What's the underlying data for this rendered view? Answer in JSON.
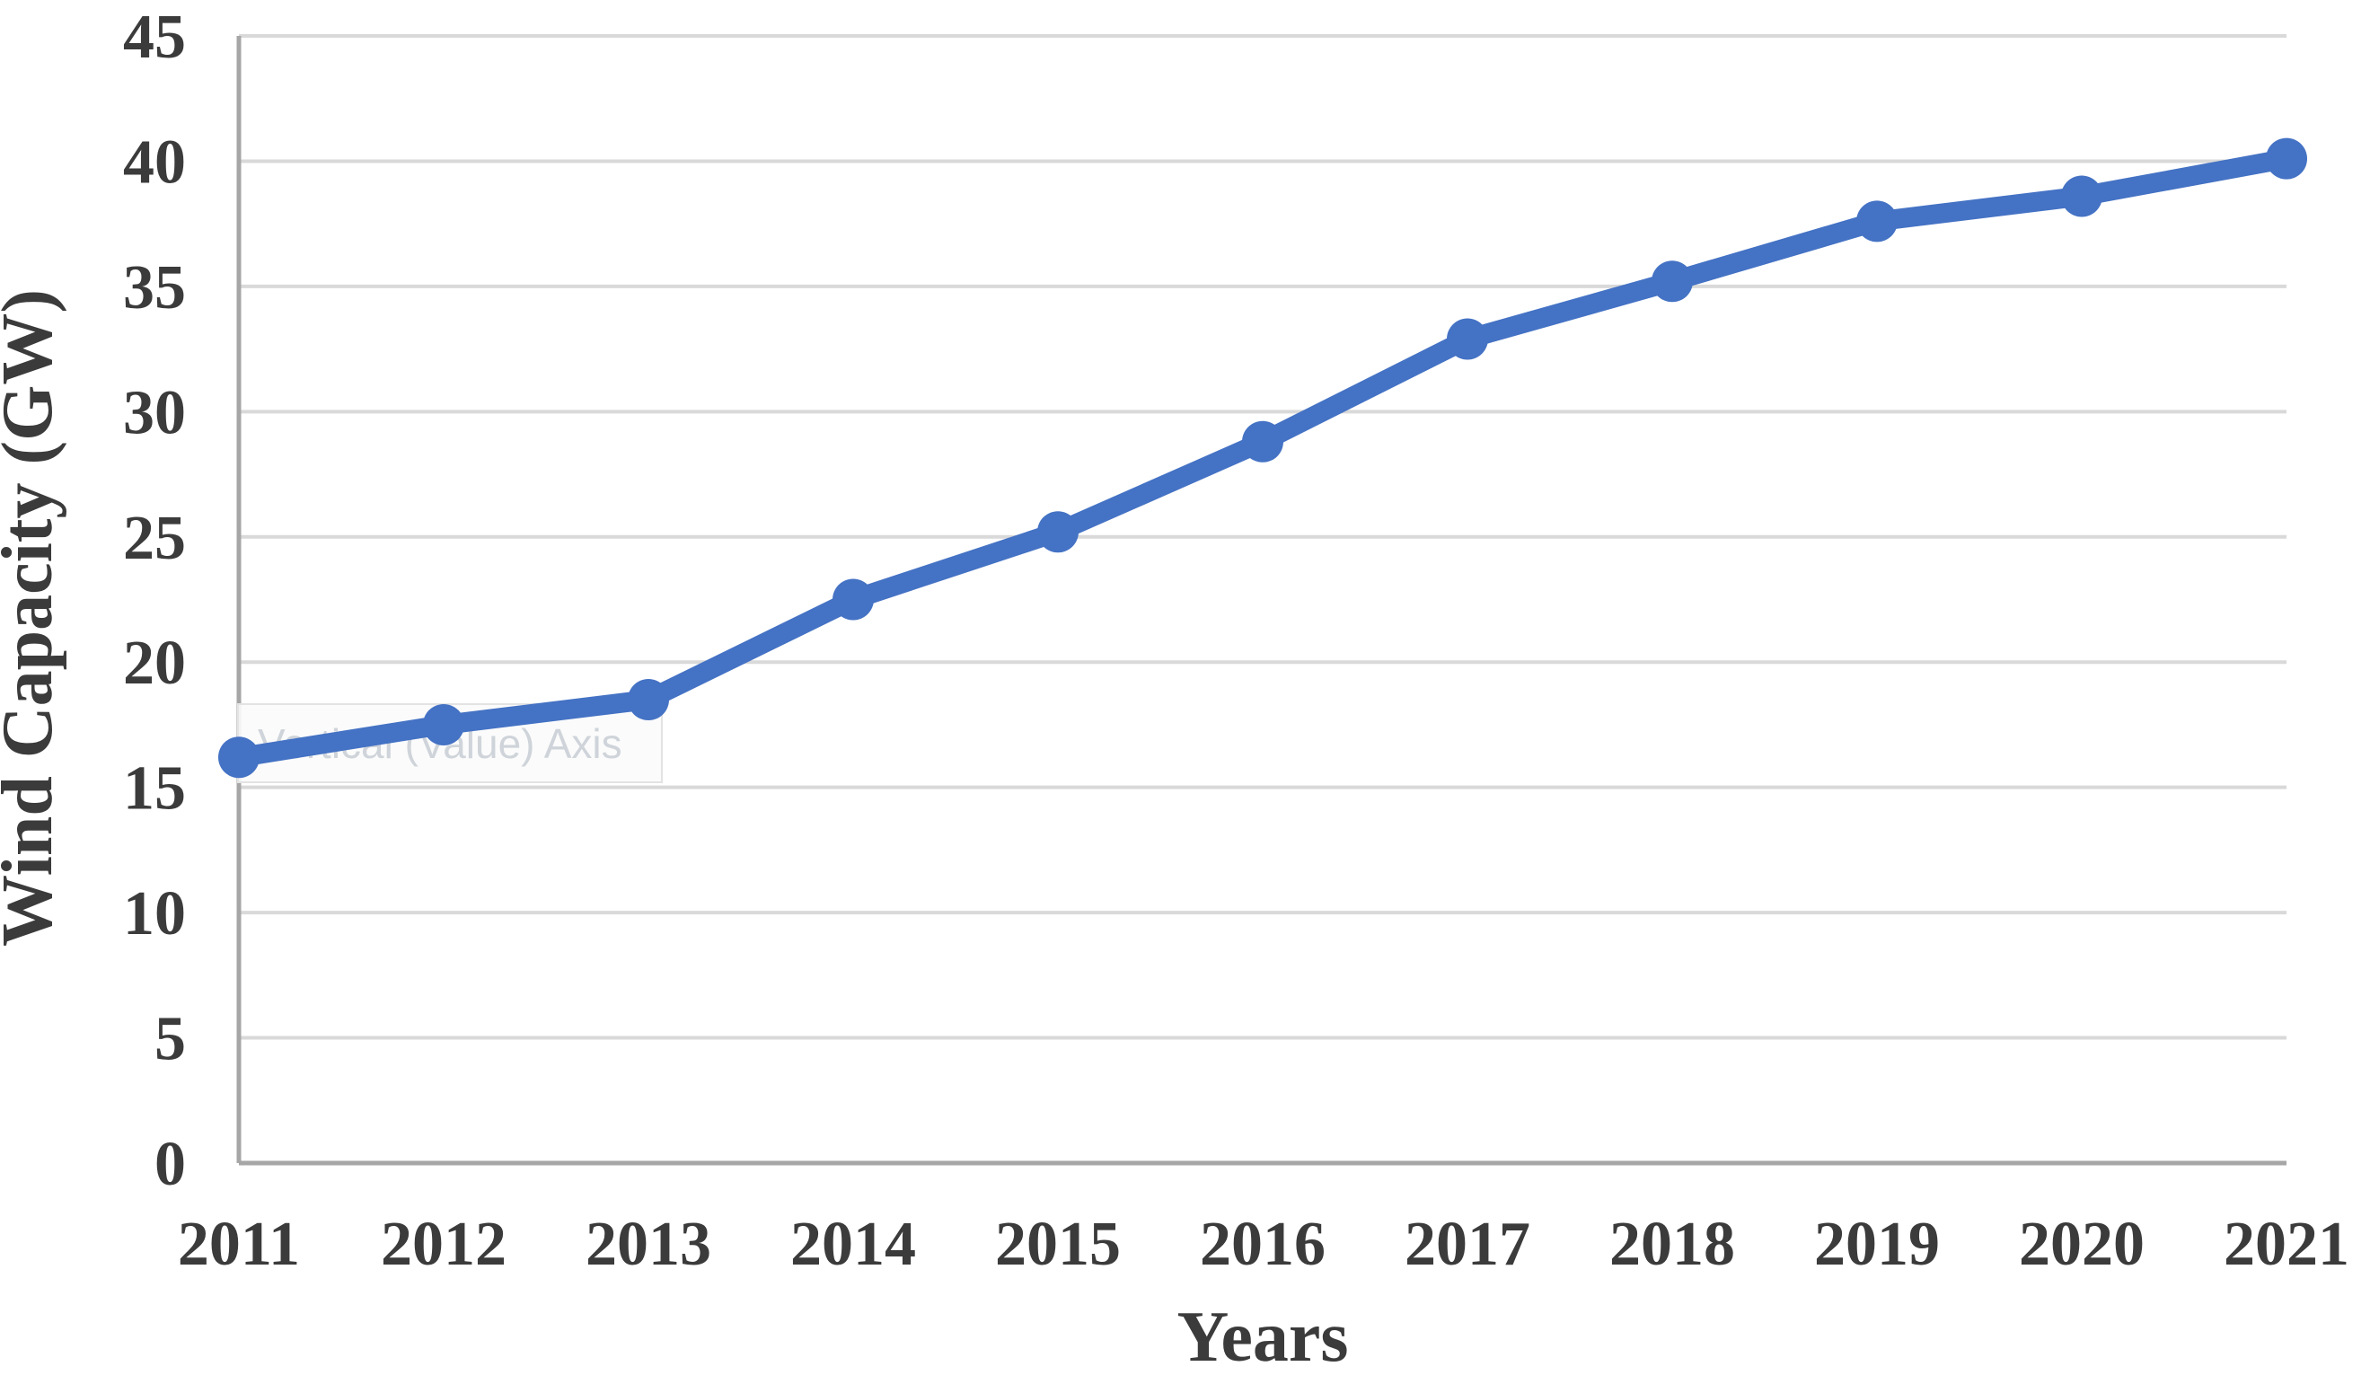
{
  "chart": {
    "y_axis_title": "Wind Capacity (GW)",
    "x_axis_title": "Years",
    "tooltip_text": "Vertical (Value) Axis",
    "colors": {
      "line": "#4472C4",
      "marker": "#4472C4",
      "gridline": "#D9D9D9",
      "axis_line": "#A6A6A6",
      "label_text": "#3B3B3B",
      "tooltip_bg": "#FBFBFB",
      "tooltip_border": "#E3E3E3",
      "tooltip_text_color": "#CFD4DA",
      "background": "#FFFFFF"
    }
  },
  "chart_data": {
    "type": "line",
    "title": "",
    "xlabel": "Years",
    "ylabel": "Wind Capacity (GW)",
    "categories": [
      "2011",
      "2012",
      "2013",
      "2014",
      "2015",
      "2016",
      "2017",
      "2018",
      "2019",
      "2020",
      "2021"
    ],
    "series": [
      {
        "name": "Wind Capacity (GW)",
        "values": [
          16.2,
          17.5,
          18.5,
          22.5,
          25.2,
          28.8,
          32.9,
          35.2,
          37.6,
          38.6,
          40.1
        ]
      }
    ],
    "ylim": [
      0,
      45
    ],
    "ytick_interval": 5,
    "yticks": [
      "0",
      "5",
      "10",
      "15",
      "20",
      "25",
      "30",
      "35",
      "40",
      "45"
    ],
    "grid": "horizontal",
    "legend": false,
    "marker": "circle",
    "overlay_tooltip": "Vertical (Value) Axis"
  }
}
